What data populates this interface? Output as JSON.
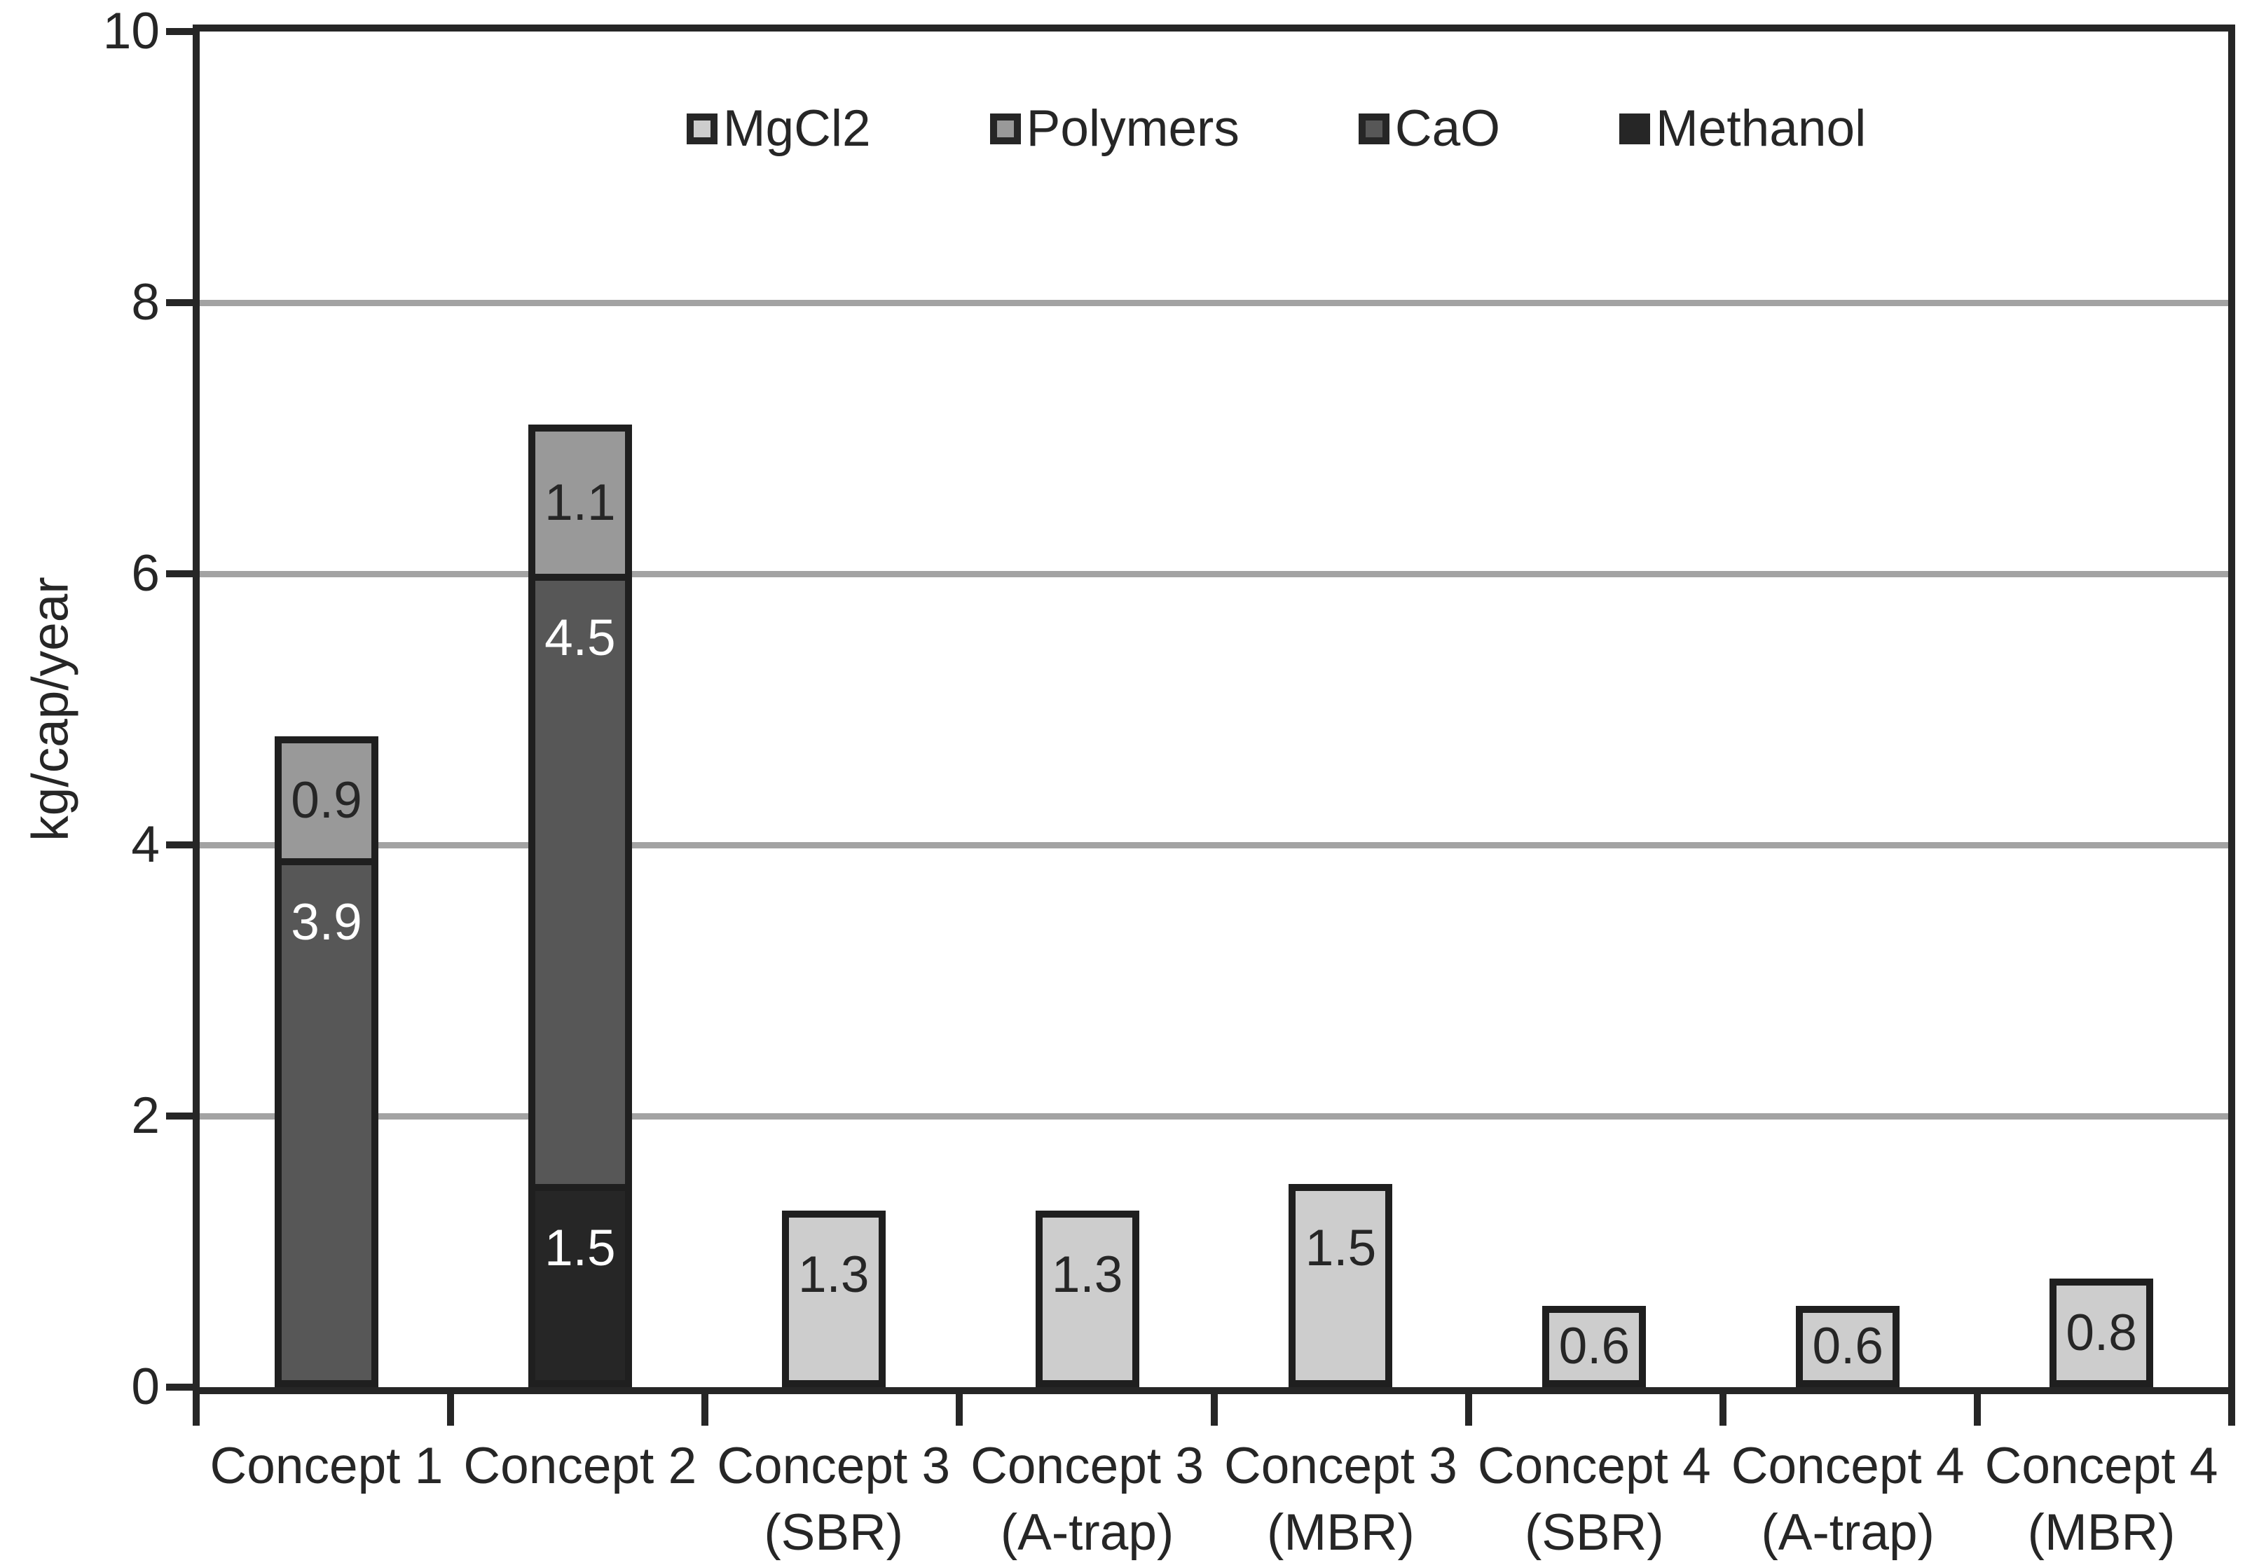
{
  "chart_data": {
    "type": "bar",
    "stacked": true,
    "ylabel": "kg/cap/year",
    "ylim": [
      0,
      10
    ],
    "yticks": [
      0,
      2,
      4,
      6,
      8,
      10
    ],
    "grid": "horizontal",
    "legend_position": "top-inside",
    "categories": [
      {
        "line1": "Concept 1",
        "line2": ""
      },
      {
        "line1": "Concept 2",
        "line2": ""
      },
      {
        "line1": "Concept 3",
        "line2": "(SBR)"
      },
      {
        "line1": "Concept 3",
        "line2": "(A-trap)"
      },
      {
        "line1": "Concept 3",
        "line2": "(MBR)"
      },
      {
        "line1": "Concept 4",
        "line2": "(SBR)"
      },
      {
        "line1": "Concept 4",
        "line2": "(A-trap)"
      },
      {
        "line1": "Concept 4",
        "line2": "(MBR)"
      }
    ],
    "series": [
      {
        "name": "MgCl2",
        "color": "#cdcdcd",
        "label_color": "#262626",
        "values": [
          null,
          null,
          1.3,
          1.3,
          1.5,
          0.6,
          0.6,
          0.8
        ]
      },
      {
        "name": "Polymers",
        "color": "#999999",
        "label_color": "#262626",
        "values": [
          0.9,
          1.1,
          null,
          null,
          null,
          null,
          null,
          null
        ]
      },
      {
        "name": "CaO",
        "color": "#575757",
        "label_color": "#ffffff",
        "values": [
          3.9,
          4.5,
          null,
          null,
          null,
          null,
          null,
          null
        ]
      },
      {
        "name": "Methanol",
        "color": "#262626",
        "label_color": "#ffffff",
        "values": [
          null,
          1.5,
          null,
          null,
          null,
          null,
          null,
          null
        ]
      }
    ],
    "stack_order_bottom_to_top": [
      "Methanol",
      "CaO",
      "Polymers",
      "MgCl2"
    ],
    "legend_items": [
      "MgCl2",
      "Polymers",
      "CaO",
      "Methanol"
    ],
    "colors": {
      "axis": "#262626",
      "bar_border": "#1f1f1f",
      "gridline": "#a3a3a3",
      "background": "#ffffff"
    }
  }
}
